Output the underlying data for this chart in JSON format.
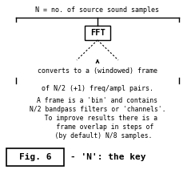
{
  "bg_color": "#ffffff",
  "text_color": "#000000",
  "title_text": "N = no. of source sound samples",
  "fft_label": "FFT",
  "converts_text": "converts to a (windowed) frame",
  "pairs_text": "of N/2 (+1) freq/ampl pairs.",
  "body_lines": [
    "A frame is a 'bin' and contains",
    "N/2 bandpass filters or 'channels'.",
    "  To improve results there is a",
    "    frame overlap in steps of",
    "   (by default) N/8 samples."
  ],
  "fig_label": "Fig. 6",
  "caption_text": "- 'N': the key",
  "font_size": 6.0,
  "fig_font_size": 8.0
}
